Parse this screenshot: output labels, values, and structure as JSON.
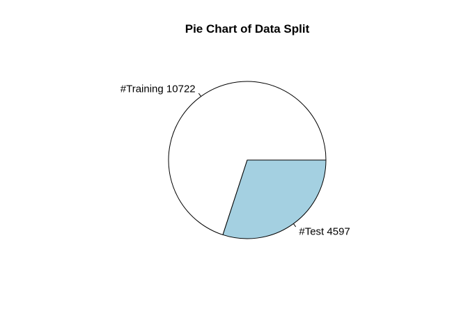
{
  "chart_data": {
    "type": "pie",
    "title": "Pie Chart of Data Split",
    "slices": [
      {
        "label": "#Training 10722",
        "category": "Training",
        "value": 10722,
        "color": "#ffffff"
      },
      {
        "label": "#Test 4597",
        "category": "Test",
        "value": 4597,
        "color": "#a4d0e1"
      }
    ],
    "start_angle_deg": 0,
    "direction": "counterclockwise",
    "border_color": "#000000",
    "legend": "none"
  }
}
